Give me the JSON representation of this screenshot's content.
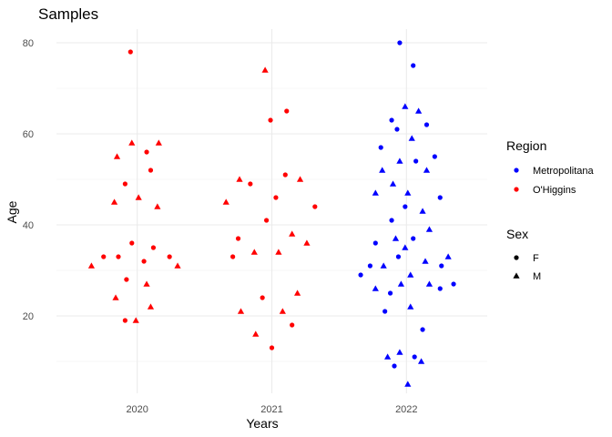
{
  "chart_data": {
    "type": "scatter",
    "title": "Samples",
    "xlabel": "Years",
    "ylabel": "Age",
    "x_categories": [
      "2020",
      "2021",
      "2022"
    ],
    "ylim": [
      3,
      83
    ],
    "y_ticks": [
      20,
      40,
      60,
      80
    ],
    "grid": true,
    "legend_position": "right",
    "legends": {
      "color": {
        "title": "Region",
        "items": [
          {
            "label": "Metropolitana",
            "color": "#0000ff"
          },
          {
            "label": "O'Higgins",
            "color": "#ff0000"
          }
        ]
      },
      "shape": {
        "title": "Sex",
        "items": [
          {
            "label": "F",
            "shape": "circle"
          },
          {
            "label": "M",
            "shape": "triangle"
          }
        ]
      }
    },
    "series": [
      {
        "region": "O'Higgins",
        "color": "#ff0000",
        "points": [
          {
            "x": "2020",
            "y": 78,
            "sex": "F",
            "jitter": -0.05
          },
          {
            "x": "2020",
            "y": 58,
            "sex": "M",
            "jitter": -0.04
          },
          {
            "x": "2020",
            "y": 58,
            "sex": "M",
            "jitter": 0.16
          },
          {
            "x": "2020",
            "y": 56,
            "sex": "F",
            "jitter": 0.07
          },
          {
            "x": "2020",
            "y": 55,
            "sex": "M",
            "jitter": -0.15
          },
          {
            "x": "2020",
            "y": 52,
            "sex": "F",
            "jitter": 0.1
          },
          {
            "x": "2020",
            "y": 49,
            "sex": "F",
            "jitter": -0.09
          },
          {
            "x": "2020",
            "y": 46,
            "sex": "M",
            "jitter": 0.01
          },
          {
            "x": "2020",
            "y": 45,
            "sex": "M",
            "jitter": -0.17
          },
          {
            "x": "2020",
            "y": 44,
            "sex": "M",
            "jitter": 0.15
          },
          {
            "x": "2020",
            "y": 36,
            "sex": "F",
            "jitter": -0.04
          },
          {
            "x": "2020",
            "y": 35,
            "sex": "F",
            "jitter": 0.12
          },
          {
            "x": "2020",
            "y": 33,
            "sex": "F",
            "jitter": -0.25
          },
          {
            "x": "2020",
            "y": 33,
            "sex": "F",
            "jitter": -0.14
          },
          {
            "x": "2020",
            "y": 33,
            "sex": "F",
            "jitter": 0.24
          },
          {
            "x": "2020",
            "y": 32,
            "sex": "F",
            "jitter": 0.05
          },
          {
            "x": "2020",
            "y": 31,
            "sex": "M",
            "jitter": -0.34
          },
          {
            "x": "2020",
            "y": 31,
            "sex": "M",
            "jitter": 0.3
          },
          {
            "x": "2020",
            "y": 28,
            "sex": "F",
            "jitter": -0.08
          },
          {
            "x": "2020",
            "y": 27,
            "sex": "M",
            "jitter": 0.07
          },
          {
            "x": "2020",
            "y": 24,
            "sex": "M",
            "jitter": -0.16
          },
          {
            "x": "2020",
            "y": 22,
            "sex": "M",
            "jitter": 0.1
          },
          {
            "x": "2020",
            "y": 19,
            "sex": "F",
            "jitter": -0.09
          },
          {
            "x": "2020",
            "y": 19,
            "sex": "M",
            "jitter": -0.01
          },
          {
            "x": "2021",
            "y": 74,
            "sex": "M",
            "jitter": -0.05
          },
          {
            "x": "2021",
            "y": 65,
            "sex": "F",
            "jitter": 0.11
          },
          {
            "x": "2021",
            "y": 63,
            "sex": "F",
            "jitter": -0.01
          },
          {
            "x": "2021",
            "y": 51,
            "sex": "F",
            "jitter": 0.1
          },
          {
            "x": "2021",
            "y": 50,
            "sex": "M",
            "jitter": -0.24
          },
          {
            "x": "2021",
            "y": 50,
            "sex": "M",
            "jitter": 0.21
          },
          {
            "x": "2021",
            "y": 49,
            "sex": "F",
            "jitter": -0.16
          },
          {
            "x": "2021",
            "y": 46,
            "sex": "F",
            "jitter": 0.03
          },
          {
            "x": "2021",
            "y": 45,
            "sex": "M",
            "jitter": -0.34
          },
          {
            "x": "2021",
            "y": 44,
            "sex": "F",
            "jitter": 0.32
          },
          {
            "x": "2021",
            "y": 41,
            "sex": "F",
            "jitter": -0.04
          },
          {
            "x": "2021",
            "y": 38,
            "sex": "M",
            "jitter": 0.15
          },
          {
            "x": "2021",
            "y": 37,
            "sex": "F",
            "jitter": -0.25
          },
          {
            "x": "2021",
            "y": 36,
            "sex": "M",
            "jitter": 0.26
          },
          {
            "x": "2021",
            "y": 34,
            "sex": "M",
            "jitter": -0.13
          },
          {
            "x": "2021",
            "y": 34,
            "sex": "M",
            "jitter": 0.05
          },
          {
            "x": "2021",
            "y": 33,
            "sex": "F",
            "jitter": -0.29
          },
          {
            "x": "2021",
            "y": 25,
            "sex": "M",
            "jitter": 0.19
          },
          {
            "x": "2021",
            "y": 24,
            "sex": "F",
            "jitter": -0.07
          },
          {
            "x": "2021",
            "y": 21,
            "sex": "M",
            "jitter": -0.23
          },
          {
            "x": "2021",
            "y": 21,
            "sex": "M",
            "jitter": 0.08
          },
          {
            "x": "2021",
            "y": 18,
            "sex": "F",
            "jitter": 0.15
          },
          {
            "x": "2021",
            "y": 16,
            "sex": "M",
            "jitter": -0.12
          },
          {
            "x": "2021",
            "y": 13,
            "sex": "F",
            "jitter": 0.0
          }
        ]
      },
      {
        "region": "Metropolitana",
        "color": "#0000ff",
        "points": [
          {
            "x": "2022",
            "y": 80,
            "sex": "F",
            "jitter": -0.05
          },
          {
            "x": "2022",
            "y": 75,
            "sex": "F",
            "jitter": 0.05
          },
          {
            "x": "2022",
            "y": 66,
            "sex": "M",
            "jitter": -0.01
          },
          {
            "x": "2022",
            "y": 65,
            "sex": "M",
            "jitter": 0.09
          },
          {
            "x": "2022",
            "y": 63,
            "sex": "F",
            "jitter": -0.11
          },
          {
            "x": "2022",
            "y": 62,
            "sex": "F",
            "jitter": 0.15
          },
          {
            "x": "2022",
            "y": 61,
            "sex": "F",
            "jitter": -0.07
          },
          {
            "x": "2022",
            "y": 59,
            "sex": "M",
            "jitter": 0.04
          },
          {
            "x": "2022",
            "y": 57,
            "sex": "F",
            "jitter": -0.19
          },
          {
            "x": "2022",
            "y": 55,
            "sex": "F",
            "jitter": 0.21
          },
          {
            "x": "2022",
            "y": 54,
            "sex": "M",
            "jitter": -0.05
          },
          {
            "x": "2022",
            "y": 54,
            "sex": "F",
            "jitter": 0.07
          },
          {
            "x": "2022",
            "y": 52,
            "sex": "M",
            "jitter": -0.18
          },
          {
            "x": "2022",
            "y": 52,
            "sex": "M",
            "jitter": 0.15
          },
          {
            "x": "2022",
            "y": 49,
            "sex": "M",
            "jitter": -0.1
          },
          {
            "x": "2022",
            "y": 47,
            "sex": "M",
            "jitter": -0.23
          },
          {
            "x": "2022",
            "y": 47,
            "sex": "M",
            "jitter": 0.01
          },
          {
            "x": "2022",
            "y": 46,
            "sex": "F",
            "jitter": 0.25
          },
          {
            "x": "2022",
            "y": 44,
            "sex": "F",
            "jitter": -0.01
          },
          {
            "x": "2022",
            "y": 43,
            "sex": "M",
            "jitter": 0.12
          },
          {
            "x": "2022",
            "y": 41,
            "sex": "F",
            "jitter": -0.11
          },
          {
            "x": "2022",
            "y": 39,
            "sex": "M",
            "jitter": 0.17
          },
          {
            "x": "2022",
            "y": 37,
            "sex": "M",
            "jitter": -0.08
          },
          {
            "x": "2022",
            "y": 37,
            "sex": "F",
            "jitter": 0.05
          },
          {
            "x": "2022",
            "y": 36,
            "sex": "F",
            "jitter": -0.23
          },
          {
            "x": "2022",
            "y": 35,
            "sex": "M",
            "jitter": -0.01
          },
          {
            "x": "2022",
            "y": 33,
            "sex": "F",
            "jitter": -0.06
          },
          {
            "x": "2022",
            "y": 33,
            "sex": "M",
            "jitter": 0.31
          },
          {
            "x": "2022",
            "y": 32,
            "sex": "M",
            "jitter": 0.14
          },
          {
            "x": "2022",
            "y": 31,
            "sex": "F",
            "jitter": -0.27
          },
          {
            "x": "2022",
            "y": 31,
            "sex": "M",
            "jitter": -0.17
          },
          {
            "x": "2022",
            "y": 31,
            "sex": "F",
            "jitter": 0.26
          },
          {
            "x": "2022",
            "y": 29,
            "sex": "F",
            "jitter": -0.34
          },
          {
            "x": "2022",
            "y": 29,
            "sex": "M",
            "jitter": 0.03
          },
          {
            "x": "2022",
            "y": 27,
            "sex": "M",
            "jitter": -0.04
          },
          {
            "x": "2022",
            "y": 27,
            "sex": "M",
            "jitter": 0.17
          },
          {
            "x": "2022",
            "y": 27,
            "sex": "F",
            "jitter": 0.35
          },
          {
            "x": "2022",
            "y": 26,
            "sex": "M",
            "jitter": -0.23
          },
          {
            "x": "2022",
            "y": 26,
            "sex": "F",
            "jitter": 0.25
          },
          {
            "x": "2022",
            "y": 25,
            "sex": "F",
            "jitter": -0.12
          },
          {
            "x": "2022",
            "y": 22,
            "sex": "M",
            "jitter": 0.03
          },
          {
            "x": "2022",
            "y": 21,
            "sex": "F",
            "jitter": -0.16
          },
          {
            "x": "2022",
            "y": 17,
            "sex": "F",
            "jitter": 0.12
          },
          {
            "x": "2022",
            "y": 12,
            "sex": "M",
            "jitter": -0.05
          },
          {
            "x": "2022",
            "y": 11,
            "sex": "M",
            "jitter": -0.14
          },
          {
            "x": "2022",
            "y": 11,
            "sex": "F",
            "jitter": 0.06
          },
          {
            "x": "2022",
            "y": 10,
            "sex": "M",
            "jitter": 0.11
          },
          {
            "x": "2022",
            "y": 9,
            "sex": "F",
            "jitter": -0.09
          },
          {
            "x": "2022",
            "y": 5,
            "sex": "M",
            "jitter": 0.01
          }
        ]
      }
    ]
  }
}
